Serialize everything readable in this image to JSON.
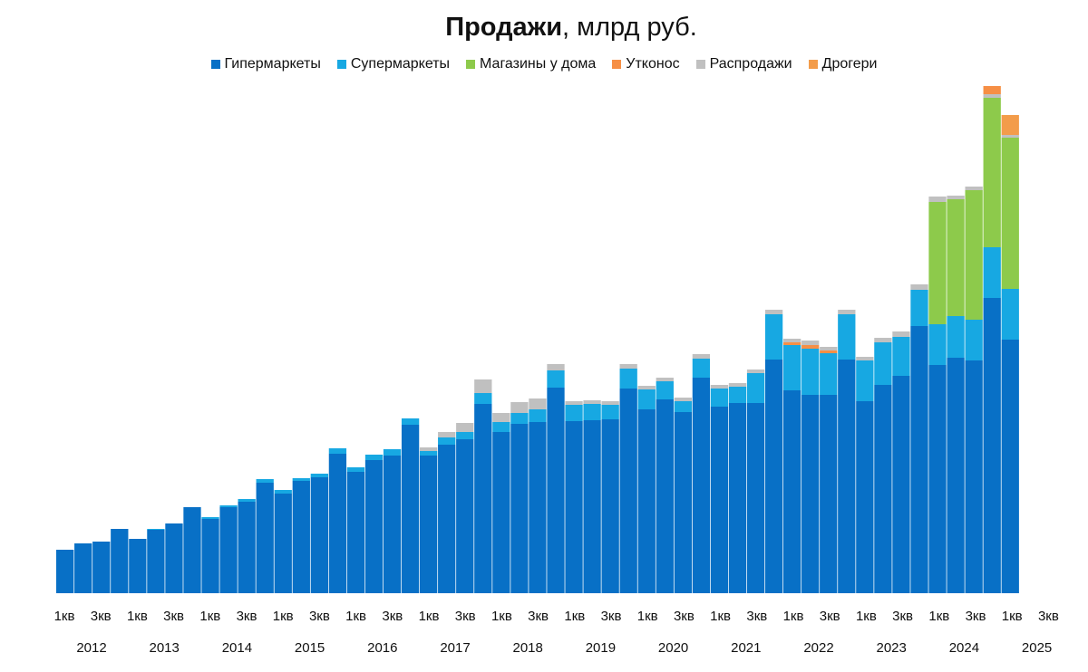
{
  "chart_data": {
    "type": "bar",
    "stacked": true,
    "title_bold": "Продажи",
    "title_rest": ", млрд руб.",
    "legend_position": "top",
    "grid": false,
    "ylim": [
      0,
      565
    ],
    "quarter_tick_labels": [
      "1кв",
      "3кв",
      "1кв",
      "3кв",
      "1кв",
      "3кв",
      "1кв",
      "3кв",
      "1кв",
      "3кв",
      "1кв",
      "3кв",
      "1кв",
      "3кв",
      "1кв",
      "3кв",
      "1кв",
      "3кв",
      "1кв",
      "3кв",
      "1кв",
      "3кв",
      "1кв",
      "3кв",
      "1кв",
      "3кв",
      "1кв",
      "3кв"
    ],
    "year_labels": [
      "2012",
      "2013",
      "2014",
      "2015",
      "2016",
      "2017",
      "2018",
      "2019",
      "2020",
      "2021",
      "2022",
      "2023",
      "2024",
      "2025"
    ],
    "categories": [
      "2012 1кв",
      "2012 2кв",
      "2012 3кв",
      "2012 4кв",
      "2013 1кв",
      "2013 2кв",
      "2013 3кв",
      "2013 4кв",
      "2014 1кв",
      "2014 2кв",
      "2014 3кв",
      "2014 4кв",
      "2015 1кв",
      "2015 2кв",
      "2015 3кв",
      "2015 4кв",
      "2016 1кв",
      "2016 2кв",
      "2016 3кв",
      "2016 4кв",
      "2017 1кв",
      "2017 2кв",
      "2017 3кв",
      "2017 4кв",
      "2018 1кв",
      "2018 2кв",
      "2018 3кв",
      "2018 4кв",
      "2019 1кв",
      "2019 2кв",
      "2019 3кв",
      "2019 4кв",
      "2020 1кв",
      "2020 2кв",
      "2020 3кв",
      "2020 4кв",
      "2021 1кв",
      "2021 2кв",
      "2021 3кв",
      "2021 4кв",
      "2022 1кв",
      "2022 2кв",
      "2022 3кв",
      "2022 4кв",
      "2023 1кв",
      "2023 2кв",
      "2023 3кв",
      "2023 4кв",
      "2024 1кв",
      "2024 2кв",
      "2024 3кв",
      "2024 4кв",
      "2025 1кв"
    ],
    "series": [
      {
        "name": "Гипермаркеты",
        "color": "#0870c6",
        "values": [
          48,
          55,
          57,
          71,
          60,
          70,
          77,
          95,
          82,
          95,
          101,
          122,
          110,
          124,
          128,
          154,
          134,
          147,
          152,
          186,
          152,
          164,
          170,
          209,
          178,
          187,
          189,
          227,
          190,
          191,
          192,
          226,
          203,
          214,
          200,
          238,
          206,
          210,
          210,
          258,
          224,
          219,
          219,
          258,
          212,
          230,
          240,
          295,
          252,
          260,
          257,
          326,
          280
        ]
      },
      {
        "name": "Супермаркеты",
        "color": "#17a8e2",
        "values": [
          0,
          0,
          0,
          0,
          0,
          1,
          0,
          0,
          2,
          2,
          3,
          4,
          4,
          3,
          4,
          6,
          5,
          6,
          7,
          7,
          5,
          8,
          8,
          12,
          11,
          12,
          14,
          19,
          18,
          18,
          16,
          22,
          22,
          20,
          12,
          21,
          20,
          18,
          33,
          50,
          50,
          51,
          46,
          50,
          45,
          47,
          43,
          40,
          45,
          46,
          45,
          56,
          56
        ]
      },
      {
        "name": "Магазины у дома",
        "color": "#8dca4b",
        "values": [
          0,
          0,
          0,
          0,
          0,
          0,
          0,
          0,
          0,
          0,
          0,
          0,
          0,
          0,
          0,
          0,
          0,
          0,
          0,
          0,
          0,
          0,
          0,
          0,
          0,
          0,
          0,
          0,
          0,
          0,
          0,
          0,
          0,
          0,
          0,
          0,
          0,
          0,
          0,
          0,
          0,
          0,
          0,
          0,
          0,
          0,
          0,
          0,
          135,
          129,
          143,
          165,
          167
        ]
      },
      {
        "name": "Утконос",
        "color": "#f68f45",
        "values": [
          0,
          0,
          0,
          0,
          0,
          0,
          0,
          0,
          0,
          0,
          0,
          0,
          0,
          0,
          0,
          0,
          0,
          0,
          0,
          0,
          0,
          0,
          0,
          0,
          0,
          0,
          0,
          0,
          0,
          0,
          0,
          0,
          0,
          0,
          0,
          0,
          0,
          0,
          0,
          0,
          3,
          4,
          3,
          0,
          0,
          0,
          0,
          0,
          0,
          0,
          0,
          0,
          0
        ]
      },
      {
        "name": "Распродажи",
        "color": "#c0c0c0",
        "values": [
          0,
          0,
          0,
          0,
          0,
          0,
          0,
          0,
          0,
          0,
          0,
          0,
          0,
          0,
          0,
          0,
          0,
          0,
          0,
          0,
          4,
          6,
          10,
          15,
          10,
          12,
          12,
          7,
          4,
          4,
          4,
          5,
          4,
          4,
          4,
          5,
          4,
          4,
          4,
          5,
          4,
          5,
          4,
          5,
          4,
          5,
          6,
          6,
          6,
          4,
          4,
          4,
          3
        ]
      },
      {
        "name": "Дрогери",
        "color": "#f39c4a",
        "values": [
          0,
          0,
          0,
          0,
          0,
          0,
          0,
          0,
          0,
          0,
          0,
          0,
          0,
          0,
          0,
          0,
          0,
          0,
          0,
          0,
          0,
          0,
          0,
          0,
          0,
          0,
          0,
          0,
          0,
          0,
          0,
          0,
          0,
          0,
          0,
          0,
          0,
          0,
          0,
          0,
          0,
          0,
          0,
          0,
          0,
          0,
          0,
          0,
          0,
          0,
          0,
          0,
          22
        ]
      }
    ]
  },
  "extra_caps": {
    "2024 4кв": {
      "color": "#f68f45",
      "value": 9
    }
  }
}
